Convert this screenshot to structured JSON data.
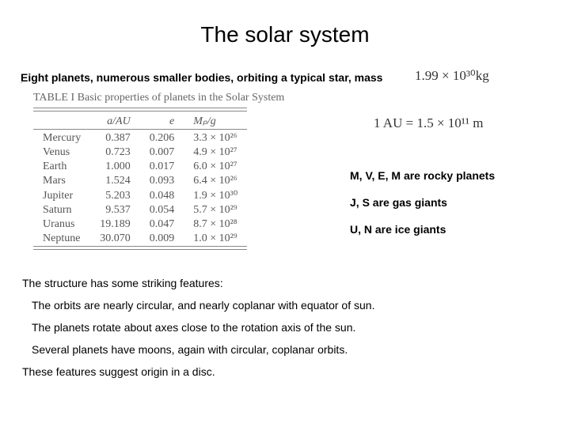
{
  "title": "The solar system",
  "intro": "Eight planets, numerous smaller bodies, orbiting a typical star, mass",
  "mass_formula": "1.99 × 10³⁰kg",
  "au_def": "1 AU = 1.5 × 10¹¹ m",
  "table": {
    "caption": "TABLE I  Basic properties of planets in the Solar System",
    "headers": {
      "name": "",
      "a": "a/AU",
      "e": "e",
      "m": "Mₚ/g"
    },
    "rows": [
      {
        "name": "Mercury",
        "a": "0.387",
        "e": "0.206",
        "m": "3.3 × 10²⁶"
      },
      {
        "name": "Venus",
        "a": "0.723",
        "e": "0.007",
        "m": "4.9 × 10²⁷"
      },
      {
        "name": "Earth",
        "a": "1.000",
        "e": "0.017",
        "m": "6.0 × 10²⁷"
      },
      {
        "name": "Mars",
        "a": "1.524",
        "e": "0.093",
        "m": "6.4 × 10²⁶"
      },
      {
        "name": "Jupiter",
        "a": "5.203",
        "e": "0.048",
        "m": "1.9 × 10³⁰"
      },
      {
        "name": "Saturn",
        "a": "9.537",
        "e": "0.054",
        "m": "5.7 × 10²⁹"
      },
      {
        "name": "Uranus",
        "a": "19.189",
        "e": "0.047",
        "m": "8.7 × 10²⁸"
      },
      {
        "name": "Neptune",
        "a": "30.070",
        "e": "0.009",
        "m": "1.0 × 10²⁹"
      }
    ]
  },
  "side_notes": {
    "rocky": "M, V, E, M are rocky planets",
    "gas": "J, S are gas giants",
    "ice": "U, N are ice giants"
  },
  "features": {
    "lead": "The structure has some striking features:",
    "items": [
      "The orbits are nearly circular, and nearly coplanar with equator of sun.",
      "The planets rotate about axes close to the rotation axis of the sun.",
      "Several planets have moons, again with circular, coplanar orbits."
    ],
    "conclude": "These features suggest origin in a disc."
  },
  "style": {
    "bg": "#ffffff",
    "text": "#000000",
    "table_text": "#555555",
    "rule": "#888888",
    "title_fontsize": 28,
    "body_fontsize": 14,
    "formula_fontsize": 17
  }
}
